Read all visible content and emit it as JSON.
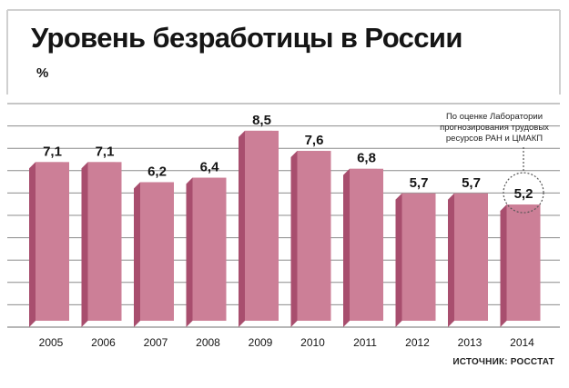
{
  "chart_data": {
    "type": "bar",
    "title": "Уровень безработицы в России",
    "ylabel": "%",
    "categories": [
      "2005",
      "2006",
      "2007",
      "2008",
      "2009",
      "2010",
      "2011",
      "2012",
      "2013",
      "2014"
    ],
    "values": [
      7.1,
      7.1,
      6.2,
      6.4,
      8.5,
      7.6,
      6.8,
      5.7,
      5.7,
      5.2
    ],
    "value_labels": [
      "7,1",
      "7,1",
      "6,2",
      "6,4",
      "8,5",
      "7,6",
      "6,8",
      "5,7",
      "5,7",
      "5,2"
    ],
    "ylim": [
      0,
      10
    ],
    "grid": true,
    "legend": "none",
    "annotation": "По оценке Лаборатории прогнозирования трудовых ресурсов РАН и ЦМАКП",
    "annotated_category": "2014",
    "source": "ИСТОЧНИК: РОССТАТ"
  },
  "colors": {
    "bar_face": "#cc7f97",
    "bar_side": "#a84e6e",
    "bar_top": "#deaab9",
    "grid": "#8c8c8c",
    "frame": "#d0d0d0",
    "text": "#151515"
  }
}
